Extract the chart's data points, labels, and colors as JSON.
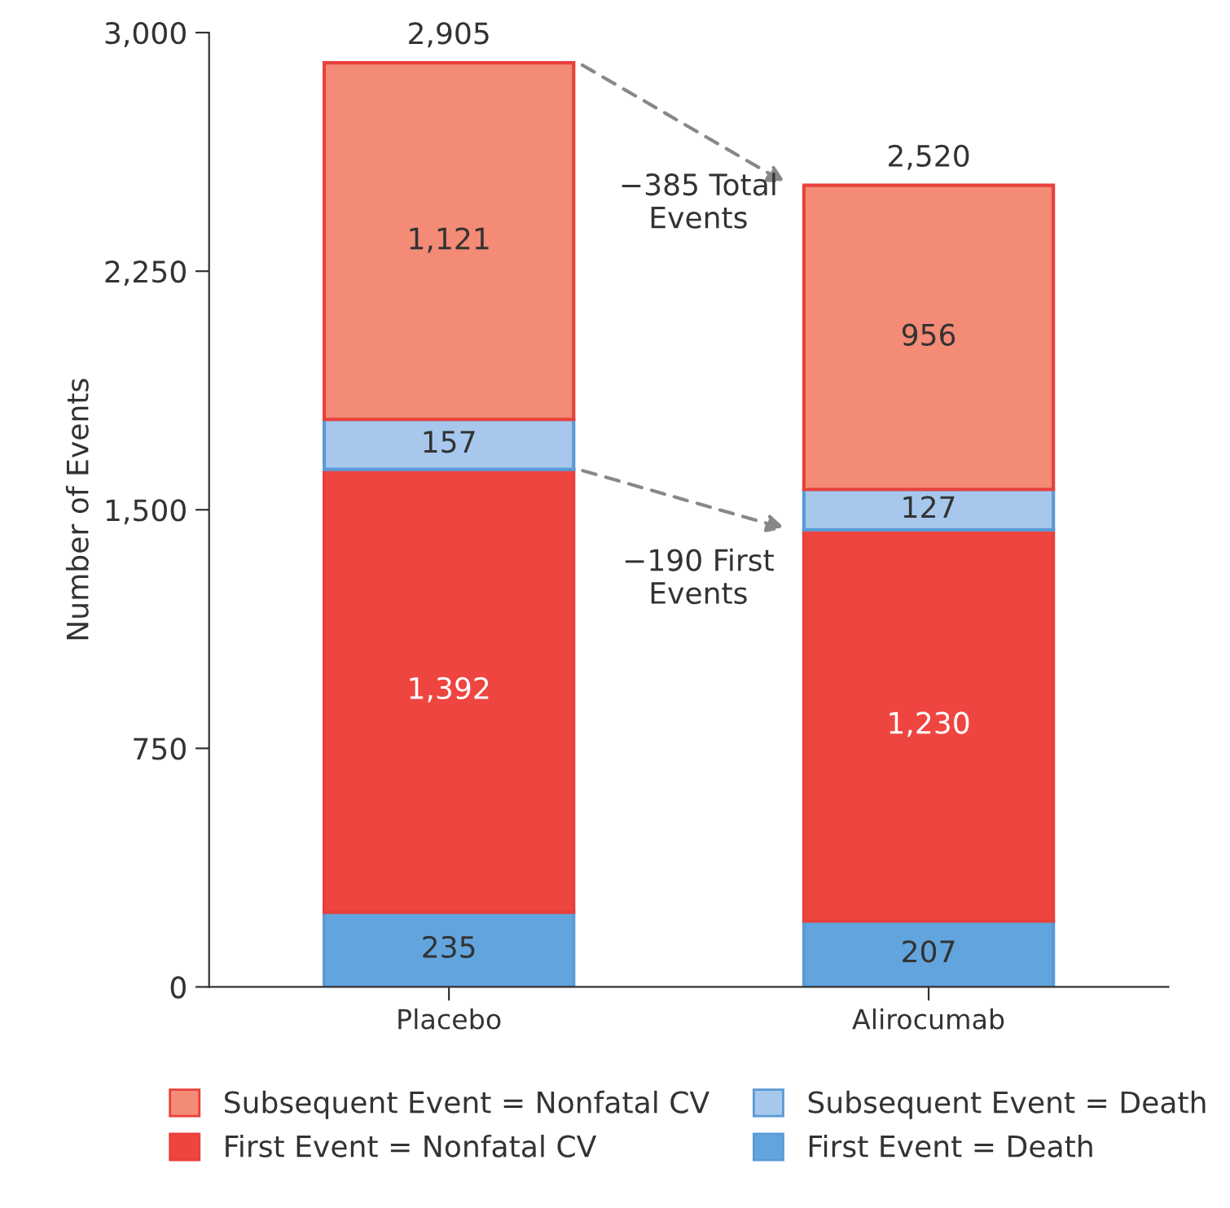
{
  "chart_data": {
    "type": "bar",
    "stacked": true,
    "ylabel": "Number of Events",
    "categories": [
      "Placebo",
      "Alirocumab"
    ],
    "series": [
      {
        "name": "First Event = Death",
        "color": "#62a5de",
        "values": [
          235,
          207
        ],
        "value_labels": [
          "235",
          "207"
        ]
      },
      {
        "name": "First Event = Nonfatal CV",
        "color": "#ef4540",
        "values": [
          1392,
          1230
        ],
        "value_labels": [
          "1,392",
          "1,230"
        ]
      },
      {
        "name": "Subsequent Event = Death",
        "color": "#a7c8ec",
        "values": [
          157,
          127
        ],
        "value_labels": [
          "157",
          "127"
        ]
      },
      {
        "name": "Subsequent Event = Nonfatal CV",
        "color": "#f48b76",
        "values": [
          1121,
          956
        ],
        "value_labels": [
          "1,121",
          "956"
        ]
      }
    ],
    "totals": [
      "2,905",
      "2,520"
    ],
    "ylim": [
      0,
      3000
    ],
    "yticks": [
      0,
      {
        "value": 750,
        "label": "750"
      },
      {
        "value": 1500,
        "label": "1,500"
      },
      {
        "value": 2250,
        "label": "2,250"
      },
      {
        "value": 3000,
        "label": "3,000"
      }
    ],
    "annotations": [
      "−385 Total\nEvents",
      "−190 First\nEvents"
    ],
    "grid": false,
    "legend": "bottom"
  }
}
